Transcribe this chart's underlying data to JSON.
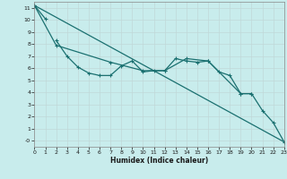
{
  "xlabel": "Humidex (Indice chaleur)",
  "background_color": "#c8ecec",
  "grid_color": "#c0d8d8",
  "line_color": "#1a7070",
  "series2_x": [
    2,
    3,
    4,
    5,
    6,
    7,
    8,
    9,
    10,
    11,
    12,
    13,
    14,
    15,
    16,
    17,
    18,
    19,
    20
  ],
  "series2_y": [
    8.3,
    7.0,
    6.1,
    5.6,
    5.4,
    5.4,
    6.2,
    6.6,
    5.7,
    5.8,
    5.8,
    6.8,
    6.6,
    6.5,
    6.6,
    5.7,
    5.4,
    3.9,
    3.9
  ],
  "series3_x": [
    0,
    2,
    7,
    10,
    12,
    14,
    16,
    19,
    20,
    21,
    22,
    23
  ],
  "series3_y": [
    11.2,
    7.9,
    6.5,
    5.8,
    5.8,
    6.8,
    6.6,
    3.9,
    3.9,
    2.5,
    1.5,
    -0.1
  ],
  "series4_x": [
    0,
    23
  ],
  "series4_y": [
    11.2,
    -0.1
  ],
  "series1_x": [
    0,
    1
  ],
  "series1_y": [
    11.2,
    10.1
  ],
  "xlim": [
    0,
    23
  ],
  "ylim": [
    -0.5,
    11.5
  ],
  "yticks": [
    0,
    1,
    2,
    3,
    4,
    5,
    6,
    7,
    8,
    9,
    10,
    11
  ],
  "ytick_labels": [
    "-0",
    "1",
    "2",
    "3",
    "4",
    "5",
    "6",
    "7",
    "8",
    "9",
    "10",
    "11"
  ],
  "xticks": [
    0,
    1,
    2,
    3,
    4,
    5,
    6,
    7,
    8,
    9,
    10,
    11,
    12,
    13,
    14,
    15,
    16,
    17,
    18,
    19,
    20,
    21,
    22,
    23
  ]
}
